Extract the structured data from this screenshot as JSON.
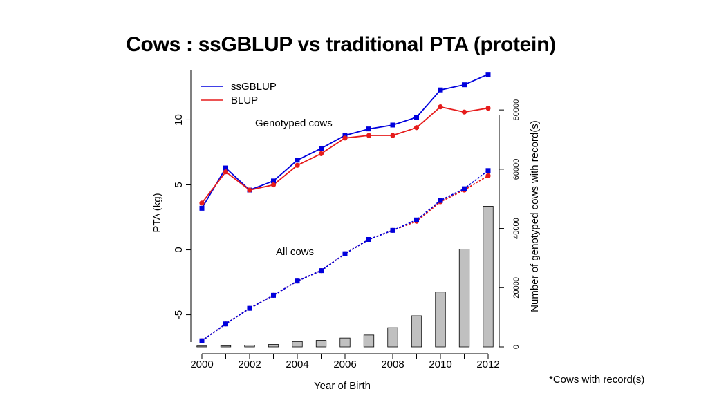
{
  "title": "Cows : ssGBLUP vs traditional PTA (protein)",
  "footnote": "*Cows with record(s)",
  "chart_data": {
    "type": "line",
    "title": "Cows : ssGBLUP vs traditional PTA (protein)",
    "xlabel": "Year of Birth",
    "ylabel": "PTA (kg)",
    "y2label": "Number of genotyped cows with record(s)",
    "x": [
      2000,
      2001,
      2002,
      2003,
      2004,
      2005,
      2006,
      2007,
      2008,
      2009,
      2010,
      2011,
      2012
    ],
    "x_ticks": [
      "2000",
      "2002",
      "2004",
      "2006",
      "2008",
      "2010",
      "2012"
    ],
    "y_ticks": [
      "-5",
      "0",
      "5",
      "10"
    ],
    "y2_ticks": [
      "0",
      "20000",
      "40000",
      "60000",
      "80000"
    ],
    "xlim": [
      2000,
      2012
    ],
    "ylim": [
      -8,
      13.8
    ],
    "y2lim": [
      0,
      84000
    ],
    "grid": false,
    "legend_position": "top-left",
    "series": [
      {
        "name": "ssGBLUP",
        "group": "Genotyped cows",
        "color": "#0000dd",
        "style": "solid",
        "marker": "square",
        "values": [
          3.2,
          6.3,
          4.6,
          5.3,
          6.9,
          7.8,
          8.8,
          9.3,
          9.6,
          10.2,
          12.3,
          12.7,
          13.5
        ]
      },
      {
        "name": "BLUP",
        "group": "Genotyped cows",
        "color": "#e61c1c",
        "style": "solid",
        "marker": "circle",
        "values": [
          3.6,
          6.0,
          4.6,
          5.0,
          6.5,
          7.4,
          8.6,
          8.8,
          8.8,
          9.4,
          11.0,
          10.6,
          10.9
        ]
      },
      {
        "name": "BLUP",
        "group": "All cows",
        "color": "#e61c1c",
        "style": "dashed",
        "marker": "circle",
        "values": [
          -7.0,
          -5.7,
          -4.5,
          -3.5,
          -2.4,
          -1.6,
          -0.3,
          0.8,
          1.5,
          2.2,
          3.7,
          4.6,
          5.7
        ]
      },
      {
        "name": "ssGBLUP",
        "group": "All cows",
        "color": "#0000dd",
        "style": "dashed",
        "marker": "square",
        "values": [
          -7.0,
          -5.7,
          -4.5,
          -3.5,
          -2.4,
          -1.6,
          -0.3,
          0.8,
          1.5,
          2.3,
          3.8,
          4.7,
          6.1
        ]
      }
    ],
    "bars": {
      "axis": "right",
      "color": "#c0c0c0",
      "values": [
        300,
        400,
        600,
        800,
        1800,
        2200,
        3000,
        4000,
        6500,
        10500,
        18500,
        33000,
        47500
      ]
    },
    "annotations": [
      "Genotyped cows",
      "All cows"
    ]
  }
}
